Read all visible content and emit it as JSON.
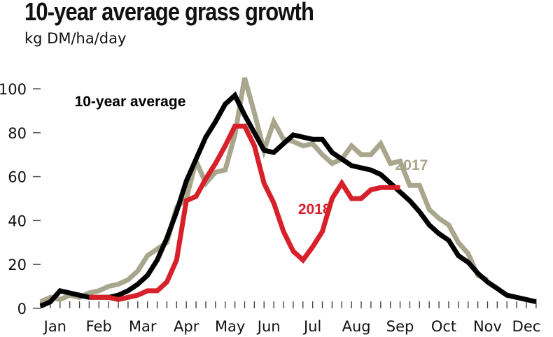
{
  "chart_data": {
    "type": "line",
    "title": "10-year average grass growth",
    "subtitle": "kg DM/ha/day",
    "xlabel": "",
    "ylabel": "kg DM/ha/day",
    "ylim": [
      0,
      110
    ],
    "yticks": [
      0,
      20,
      40,
      60,
      80,
      100
    ],
    "ytick_labels": [
      "0",
      "20",
      "40",
      "60",
      "80",
      "100"
    ],
    "x_unit": "week of year",
    "xlim": [
      0,
      51
    ],
    "months": [
      {
        "label": "Jan",
        "week": 1.5
      },
      {
        "label": "Feb",
        "week": 6
      },
      {
        "label": "Mar",
        "week": 10.5
      },
      {
        "label": "Apr",
        "week": 15
      },
      {
        "label": "May",
        "week": 19.5
      },
      {
        "label": "Jun",
        "week": 23.5
      },
      {
        "label": "Jul",
        "week": 28
      },
      {
        "label": "Aug",
        "week": 32.5
      },
      {
        "label": "Sep",
        "week": 37
      },
      {
        "label": "Oct",
        "week": 41.5
      },
      {
        "label": "Nov",
        "week": 46
      },
      {
        "label": "Dec",
        "week": 50
      }
    ],
    "grid": false,
    "series": [
      {
        "name": "10-year average",
        "color": "#000000",
        "label_text": "10-year average",
        "x": [
          0,
          1,
          2,
          3,
          4,
          5,
          6,
          7,
          8,
          9,
          10,
          11,
          12,
          13,
          14,
          15,
          16,
          17,
          18,
          19,
          20,
          21,
          22,
          23,
          24,
          25,
          26,
          27,
          28,
          29,
          30,
          31,
          32,
          33,
          34,
          35,
          36,
          37,
          38,
          39,
          40,
          41,
          42,
          43,
          44,
          45,
          46,
          47,
          48,
          49,
          50,
          51
        ],
        "values": [
          1,
          3,
          8,
          7,
          6,
          5,
          5,
          5,
          6,
          8,
          11,
          15,
          22,
          32,
          44,
          58,
          68,
          78,
          85,
          93,
          97,
          88,
          80,
          72,
          71,
          75,
          79,
          78,
          77,
          77,
          71,
          68,
          65,
          64,
          63,
          61,
          57,
          53,
          49,
          44,
          38,
          34,
          31,
          24,
          21,
          16,
          12,
          9,
          6,
          5,
          4,
          3
        ]
      },
      {
        "name": "2017",
        "color": "#a9a68e",
        "label_text": "2017",
        "x": [
          0,
          1,
          2,
          3,
          4,
          5,
          6,
          7,
          8,
          9,
          10,
          11,
          12,
          13,
          14,
          15,
          16,
          17,
          18,
          19,
          20,
          21,
          22,
          23,
          24,
          25,
          26,
          27,
          28,
          29,
          30,
          31,
          32,
          33,
          34,
          35,
          36,
          37,
          38,
          39,
          40,
          41,
          42,
          43,
          44,
          45,
          46
        ],
        "values": [
          3,
          5,
          4,
          6,
          5,
          7,
          8,
          10,
          11,
          13,
          17,
          24,
          27,
          30,
          46,
          50,
          67,
          57,
          62,
          63,
          79,
          105,
          89,
          72,
          85,
          77,
          76,
          74,
          75,
          70,
          66,
          68,
          74,
          70,
          70,
          75,
          66,
          67,
          56,
          56,
          45,
          41,
          38,
          30,
          25,
          15,
          13
        ]
      },
      {
        "name": "2018",
        "color": "#d7202a",
        "label_text": "2018",
        "x": [
          5,
          6,
          7,
          8,
          9,
          10,
          11,
          12,
          13,
          14,
          15,
          16,
          17,
          18,
          19,
          20,
          21,
          22,
          23,
          24,
          25,
          26,
          27,
          28,
          29,
          30,
          31,
          32,
          33,
          34,
          35,
          36,
          37
        ],
        "values": [
          5,
          5,
          5,
          4,
          5,
          6,
          8,
          8,
          12,
          22,
          49,
          51,
          59,
          66,
          74,
          83,
          83,
          74,
          57,
          48,
          35,
          26,
          22,
          28,
          35,
          50,
          57,
          50,
          50,
          54,
          55,
          55,
          55
        ]
      }
    ],
    "annotations": [
      {
        "text": "10-year average",
        "series": "10-year average",
        "anchor_week": 3.5,
        "anchor_value": 92
      },
      {
        "text": "2017",
        "series": "2017",
        "anchor_week": 36.5,
        "anchor_value": 63
      },
      {
        "text": "2018",
        "series": "2018",
        "anchor_week": 26.5,
        "anchor_value": 43
      }
    ],
    "legend": "inline-labels"
  }
}
